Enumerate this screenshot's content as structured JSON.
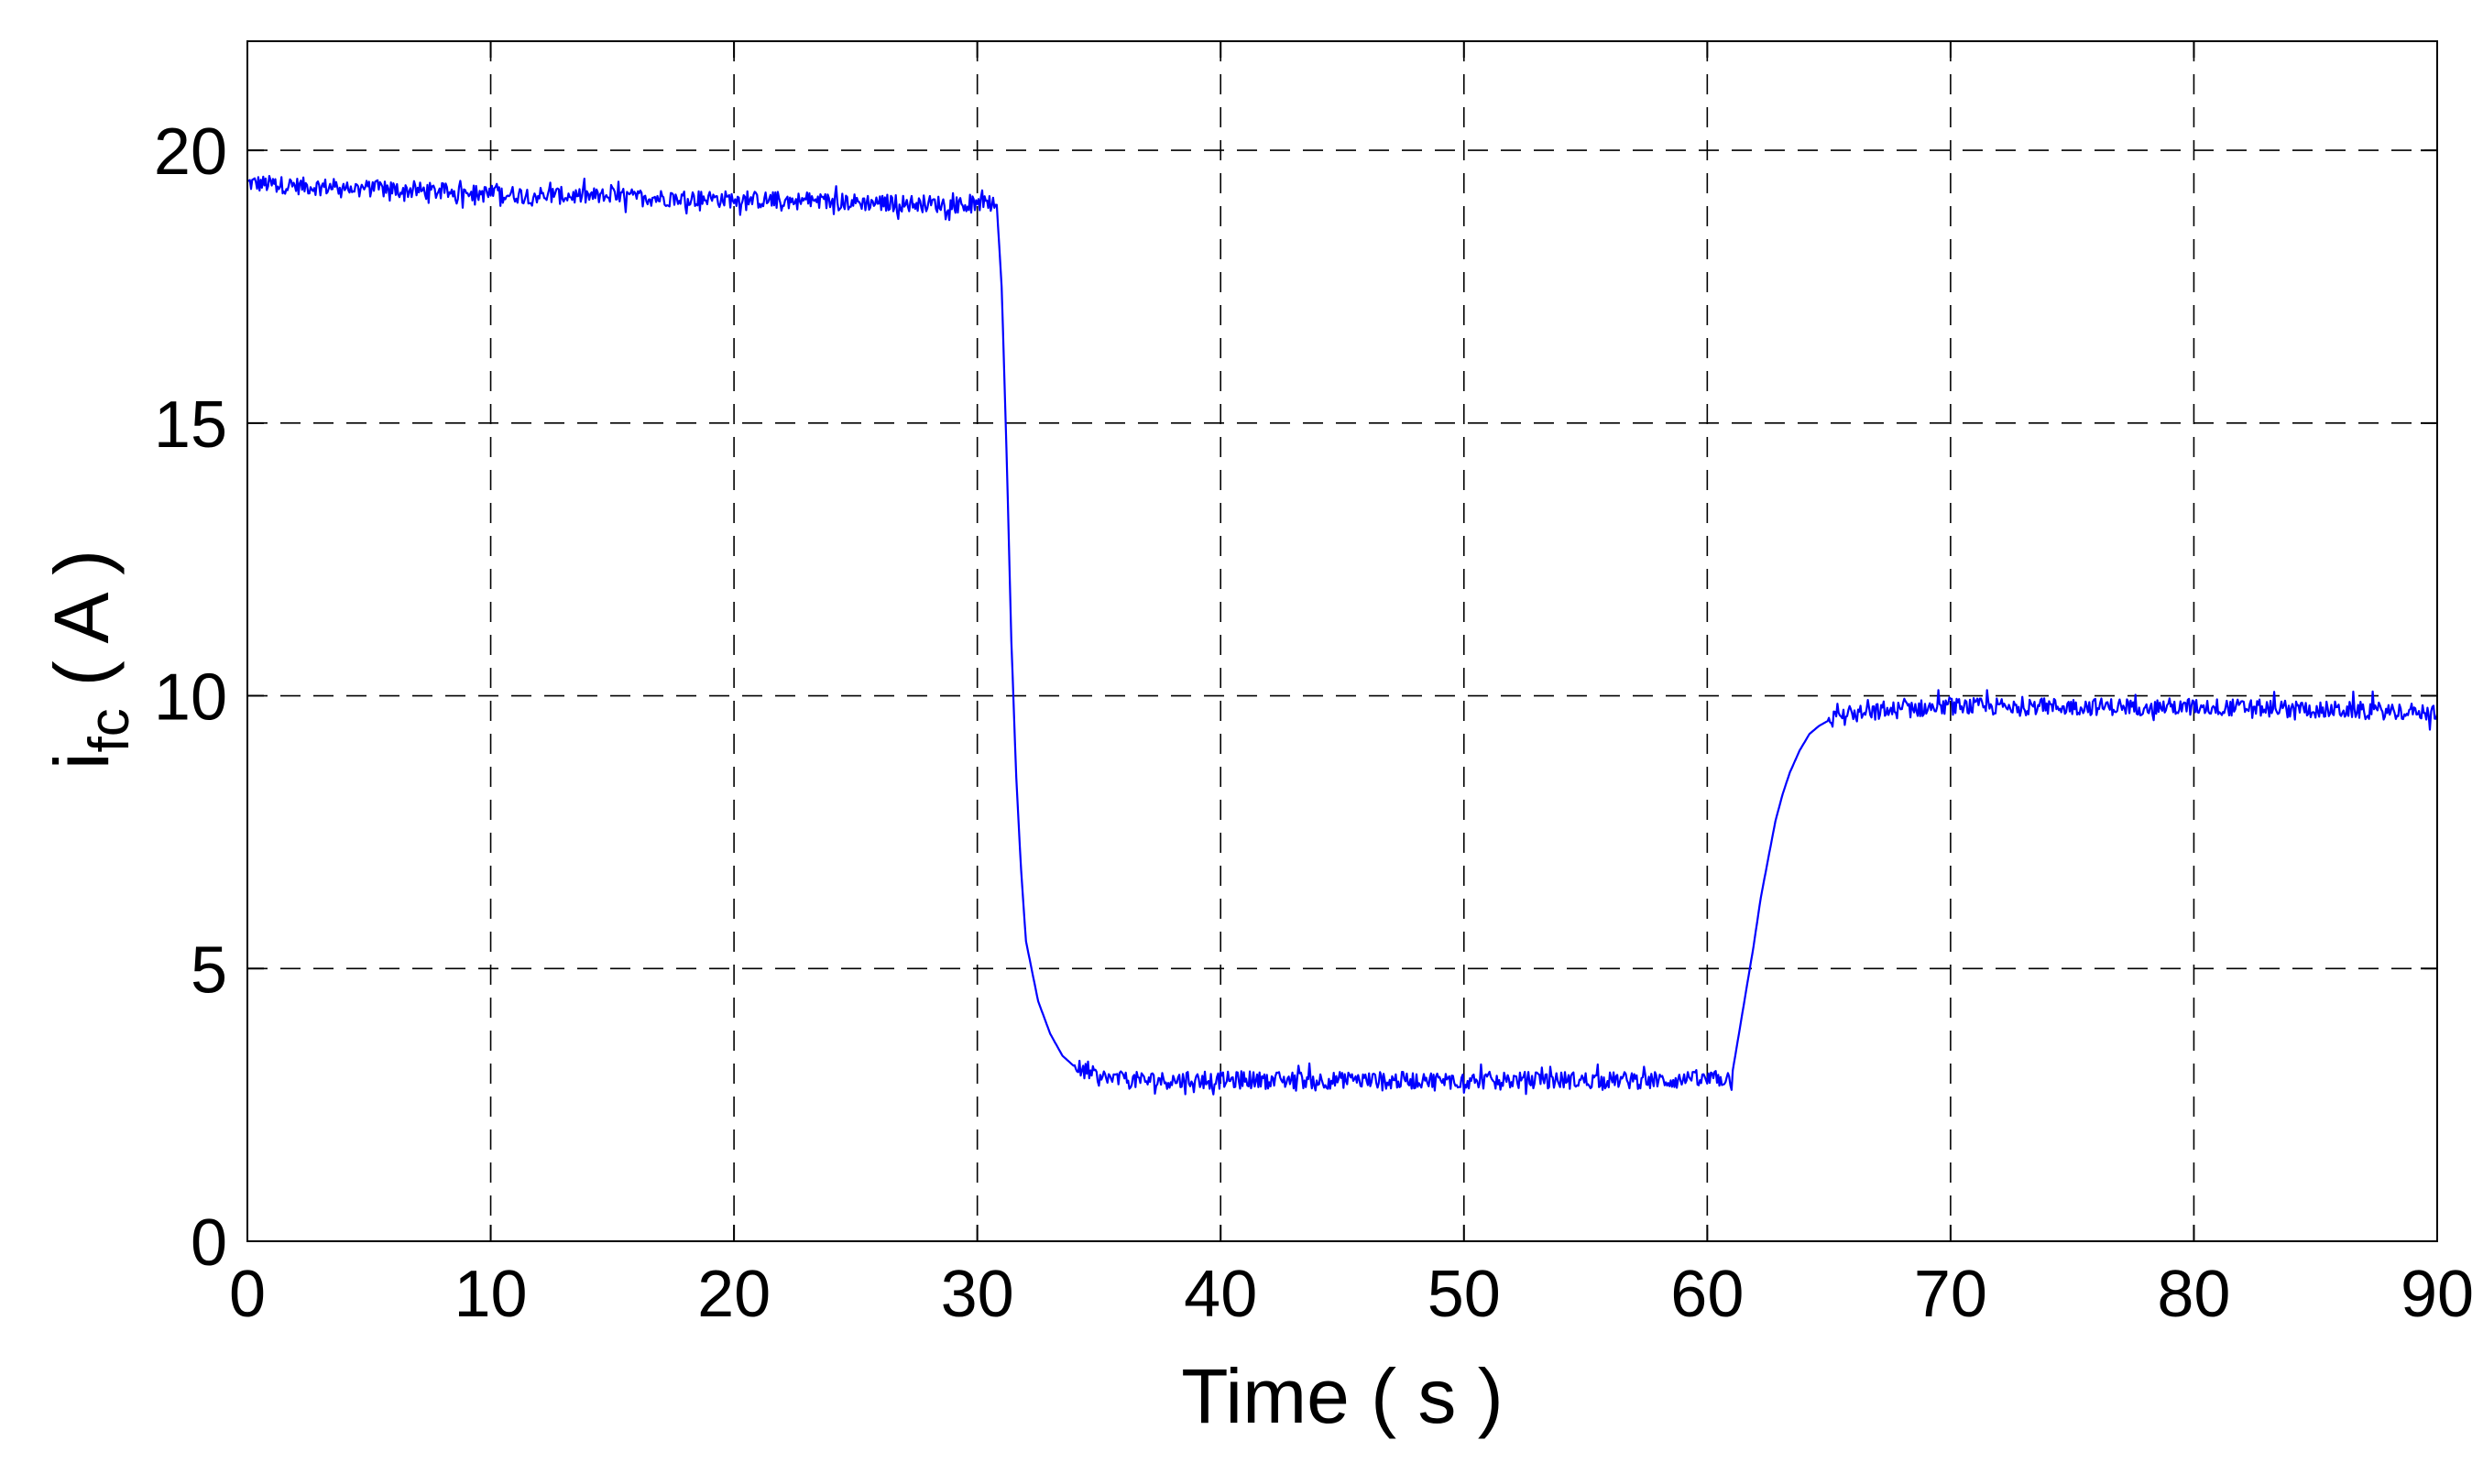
{
  "chart_data": {
    "type": "line",
    "xlabel": "Time ( s )",
    "ylabel": {
      "main": "i",
      "sub": "fc",
      "unit": "( A )"
    },
    "xlim": [
      0,
      90
    ],
    "ylim": [
      0,
      22
    ],
    "xticks": [
      0,
      10,
      20,
      30,
      40,
      50,
      60,
      70,
      80,
      90
    ],
    "yticks": [
      0,
      5,
      10,
      15,
      20
    ],
    "xtick_labels": [
      "0",
      "10",
      "20",
      "30",
      "40",
      "50",
      "60",
      "70",
      "80",
      "90"
    ],
    "ytick_labels": [
      "0",
      "5",
      "10",
      "15",
      "20"
    ],
    "grid": true,
    "grid_style": "dashed",
    "line_color": "#0000ff",
    "series": [
      {
        "x": [
          0,
          2,
          5,
          10,
          15,
          20,
          25,
          30,
          30.8,
          31.0,
          31.2,
          31.4,
          31.6,
          31.8,
          32.0,
          32.5,
          33.0,
          33.5,
          34.0,
          35.0,
          36.0,
          40.0,
          45.0,
          50.0,
          55.0,
          60.0,
          61.0,
          61.3,
          61.6,
          61.9,
          62.2,
          62.5,
          62.8,
          63.1,
          63.4,
          63.8,
          64.2,
          64.6,
          65.0,
          66.0,
          68.0,
          70.0,
          75.0,
          80.0,
          85.0,
          90.0
        ],
        "y": [
          19.4,
          19.35,
          19.3,
          19.2,
          19.15,
          19.1,
          19.05,
          19.0,
          19.0,
          17.5,
          14.5,
          11.0,
          8.5,
          6.8,
          5.5,
          4.4,
          3.8,
          3.4,
          3.2,
          3.0,
          2.95,
          2.95,
          2.95,
          2.95,
          2.95,
          2.95,
          3.0,
          3.8,
          4.6,
          5.4,
          6.3,
          7.0,
          7.7,
          8.2,
          8.6,
          9.0,
          9.3,
          9.45,
          9.55,
          9.65,
          9.75,
          9.8,
          9.8,
          9.8,
          9.75,
          9.7
        ]
      }
    ]
  }
}
